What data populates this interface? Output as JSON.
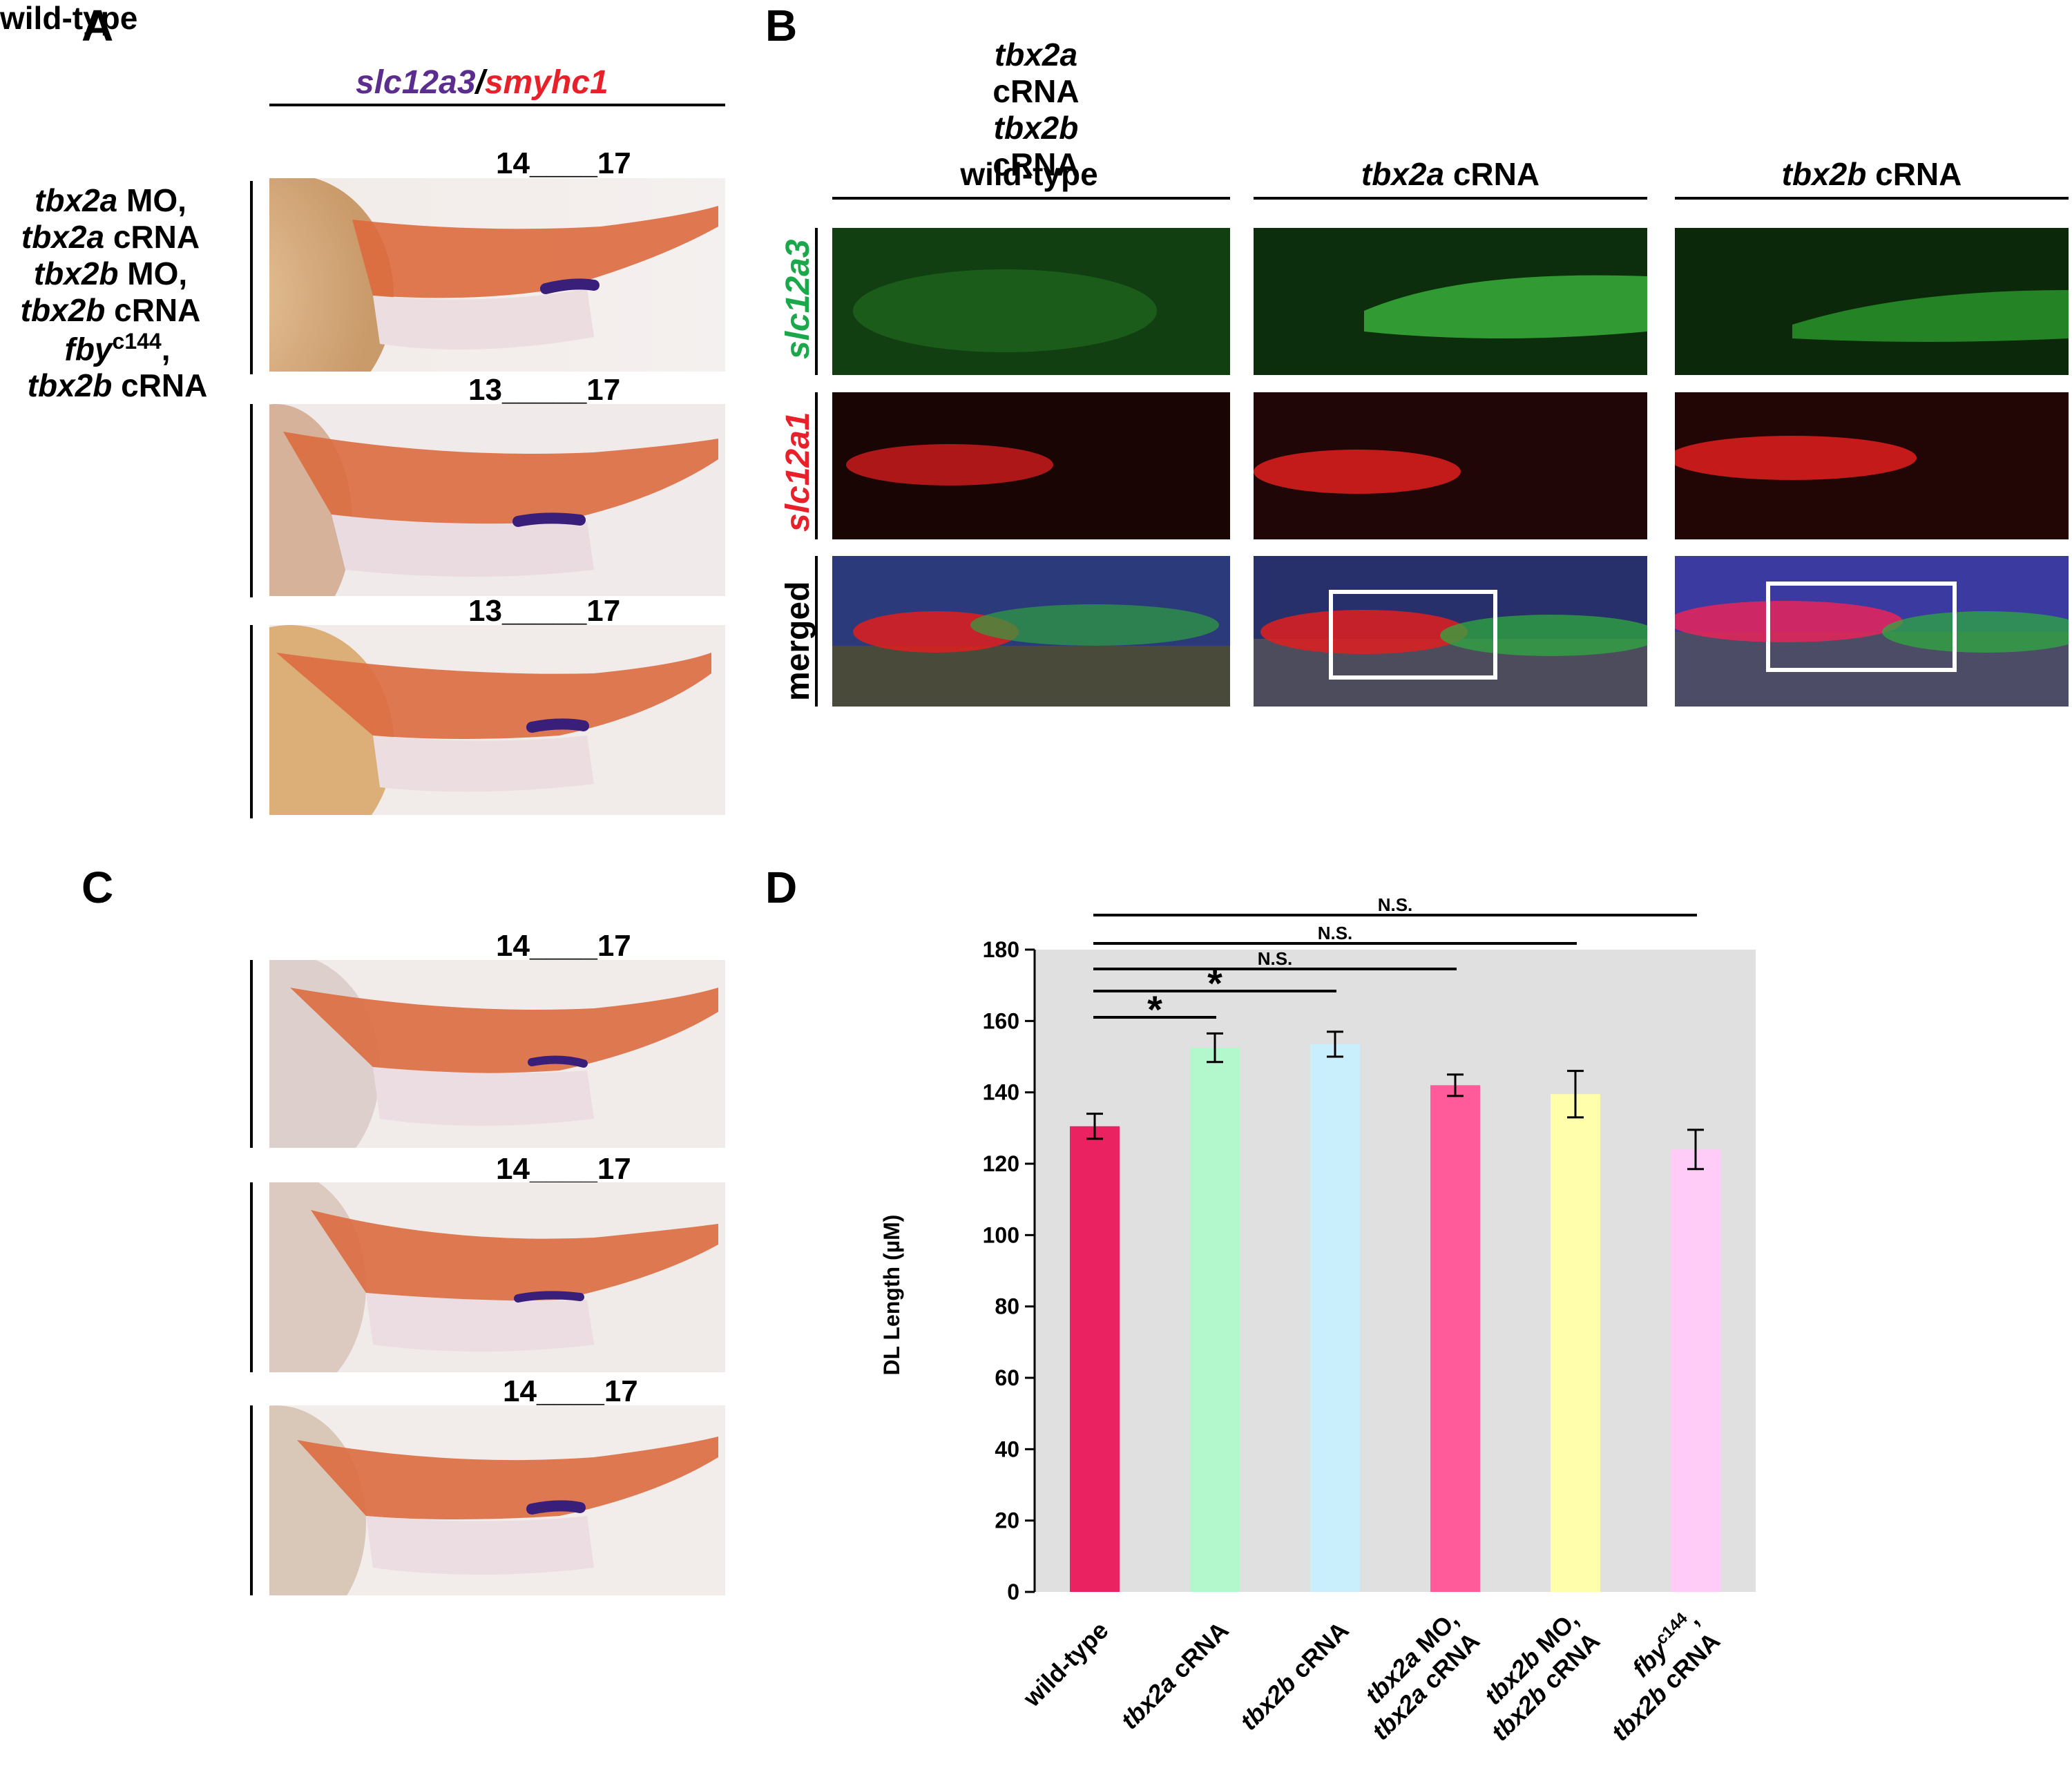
{
  "panels": {
    "A": {
      "letter": "A",
      "header_gene1": "slc12a3",
      "header_sep": "/",
      "header_gene2": "smyhc1",
      "rows": [
        {
          "label_line1": "wild-type",
          "label_line2": "",
          "segments": "14____17"
        },
        {
          "label_line1": "tbx2a",
          "label_line2": "cRNA",
          "segments": "13_____17"
        },
        {
          "label_line1": "tbx2b",
          "label_line2": "cRNA",
          "segments": "13_____17"
        }
      ]
    },
    "B": {
      "letter": "B",
      "columns": [
        {
          "gene": "",
          "rest": "wild-type"
        },
        {
          "gene": "tbx2a",
          "rest": " cRNA"
        },
        {
          "gene": "tbx2b",
          "rest": " cRNA"
        }
      ],
      "row_labels": [
        "slc12a3",
        "slc12a1",
        "merged"
      ]
    },
    "C": {
      "letter": "C",
      "rows": [
        {
          "l1_ital": "tbx2a",
          "l1_rest": " MO,",
          "l2_ital": "tbx2a",
          "l2_rest": " cRNA",
          "segments": "14____17"
        },
        {
          "l1_ital": "tbx2b",
          "l1_rest": " MO,",
          "l2_ital": "tbx2b",
          "l2_rest": " cRNA",
          "segments": "14____17"
        },
        {
          "l1_ital": "fby",
          "l1_sup": "c144",
          "l1_rest": ",",
          "l2_ital": "tbx2b",
          "l2_rest": " cRNA",
          "segments": "14____17"
        }
      ]
    },
    "D": {
      "letter": "D"
    }
  },
  "colors": {
    "slc12a3": "#5b2d8e",
    "smyhc1": "#e8202a",
    "green_label": "#1aa84a",
    "red_label": "#e8202a",
    "plot_bg": "#e0e0e0"
  },
  "chart_data": {
    "type": "bar",
    "ylabel": "DL Length  (µM)",
    "ylim": [
      0,
      180
    ],
    "yticks": [
      0,
      20,
      40,
      60,
      80,
      100,
      120,
      140,
      160,
      180
    ],
    "categories": [
      {
        "ital": "",
        "rest": "wild-type",
        "ital2": "",
        "rest2": ""
      },
      {
        "ital": "tbx2a",
        "rest": " cRNA",
        "ital2": "",
        "rest2": ""
      },
      {
        "ital": "tbx2b",
        "rest": " cRNA",
        "ital2": "",
        "rest2": ""
      },
      {
        "ital": "tbx2a",
        "rest": " MO,",
        "ital2": "tbx2a",
        "rest2": " cRNA"
      },
      {
        "ital": "tbx2b",
        "rest": " MO,",
        "ital2": "tbx2b",
        "rest2": " cRNA"
      },
      {
        "ital": "fby",
        "sup": "c144",
        "rest": ",",
        "ital2": "tbx2b",
        "rest2": " cRNA"
      }
    ],
    "values": [
      130.5,
      152.5,
      153.5,
      142,
      139.5,
      124
    ],
    "errors": [
      3.5,
      4,
      3.5,
      3,
      6.5,
      5.5
    ],
    "bar_colors": [
      "#ea2261",
      "#b3f7cd",
      "#c9eefc",
      "#ff5a9a",
      "#ffffab",
      "#ffccf7"
    ],
    "significance": [
      {
        "from": 0,
        "to": 1,
        "label": "*"
      },
      {
        "from": 0,
        "to": 2,
        "label": "*"
      },
      {
        "from": 0,
        "to": 3,
        "label": "N.S."
      },
      {
        "from": 0,
        "to": 4,
        "label": "N.S."
      },
      {
        "from": 0,
        "to": 5,
        "label": "N.S."
      }
    ]
  }
}
